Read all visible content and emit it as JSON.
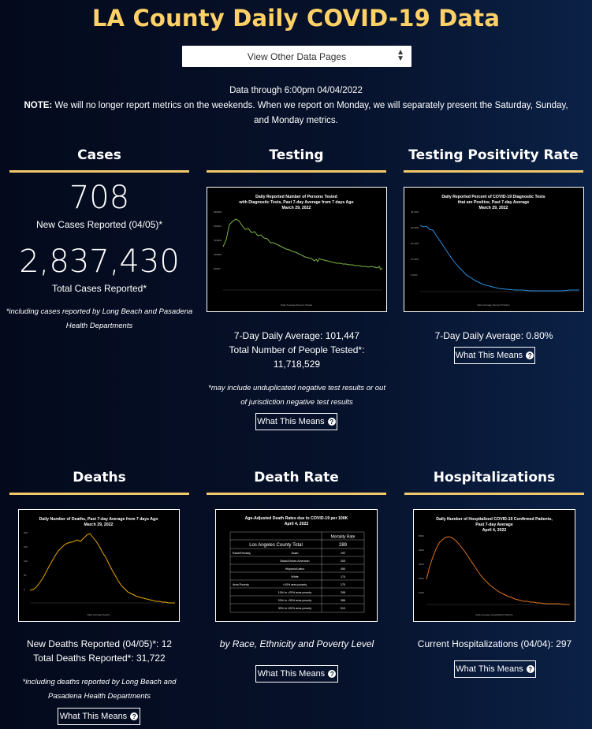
{
  "page": {
    "title": "LA County Daily COVID-19 Data",
    "nav_select": "View Other Data Pages",
    "data_through": "Data through 6:00pm 04/04/2022",
    "note_label": "NOTE:",
    "note_line1": " We will no longer report metrics on the weekends. When we report on Monday, we will separately present the Saturday, Sunday,",
    "note_line2": "and Monday metrics."
  },
  "colors": {
    "accent": "#f1c86a",
    "title": "#ffd166"
  },
  "cases": {
    "heading": "Cases",
    "new_value": "708",
    "new_label": "New Cases Reported (04/05)*",
    "total_value": "2,837,430",
    "total_label": "Total Cases Reported*",
    "footnote_1": "*including cases reported by Long Beach and Pasadena",
    "footnote_2": "Health Departments"
  },
  "testing": {
    "heading": "Testing",
    "chart_title": [
      "Daily Reported Number of Persons Tested",
      "with Diagnostic Tests, Past 7-day Average from 7 days Ago",
      "March 29, 2022"
    ],
    "legend": "Daily Average Persons Tested",
    "avg_line": "7-Day Daily Average: 101,447",
    "total_line": "Total Number of People Tested*:",
    "total_value": "11,718,529",
    "footnote_1": "*may include unduplicated negative test results or out",
    "footnote_2": "of jurisdiction negative test results",
    "button": "What This Means",
    "line_color": "#7cb342"
  },
  "positivity": {
    "heading": "Testing Positivity Rate",
    "chart_title": [
      "Daily Reported Percent of COVID-19 Diagnostic Tests",
      "that are Positive, Past 7-day Average",
      "March 29, 2022"
    ],
    "legend": "Daily Average Percent Positive",
    "avg_line": "7-Day Daily Average: 0.80%",
    "button": "What This Means",
    "line_color": "#2b8fe0"
  },
  "deaths": {
    "heading": "Deaths",
    "chart_title": [
      "Daily Number of Deaths, Past 7-day Average from 7 days Ago",
      "March 29, 2022"
    ],
    "legend": "Daily Average Deaths",
    "new_line": "New Deaths Reported (04/05)*: 12",
    "total_line": "Total Deaths Reported*: 31,722",
    "footnote_1": "*including deaths reported by Long Beach and",
    "footnote_2": "Pasadena Health Departments",
    "button": "What This Means",
    "line_color": "#e6a700"
  },
  "death_rate": {
    "heading": "Death Rate",
    "chart_title": [
      "Age-Adjusted Death Rates due to COVID-19 per 100K",
      "April 4, 2022"
    ],
    "table_header": "Mortality Rate",
    "table_title": "Los Angeles County Total",
    "table_total": "289",
    "rows": [
      {
        "group": "Race/Ethnicity",
        "label": "Asian",
        "value": "192"
      },
      {
        "group": "",
        "label": "Black/African American",
        "value": "305"
      },
      {
        "group": "",
        "label": "Hispanic/Latino",
        "value": "450"
      },
      {
        "group": "",
        "label": "White",
        "value": "174"
      },
      {
        "group": "Area Poverty",
        "label": "<10% area poverty",
        "value": "170"
      },
      {
        "group": "",
        "label": "10% to <20% area poverty",
        "value": "298"
      },
      {
        "group": "",
        "label": "20% to <30% area poverty",
        "value": "388"
      },
      {
        "group": "",
        "label": "30% to 100% area poverty",
        "value": "510"
      }
    ],
    "caption": "by Race, Ethnicity and Poverty Level",
    "button": "What This Means"
  },
  "hospitalizations": {
    "heading": "Hospitalizations",
    "chart_title": [
      "Daily Number of Hospitalized COVID-19 Confirmed Patients,",
      "Past 7-day Average",
      "April 4, 2022"
    ],
    "legend": "Daily Average Hospitalized Patients",
    "current_line": "Current Hospitalizations (04/04): 297",
    "button": "What This Means",
    "line_color": "#e0741a"
  },
  "icons": {
    "select_arrows": "sort-arrows-icon",
    "help": "question-circle-icon"
  }
}
